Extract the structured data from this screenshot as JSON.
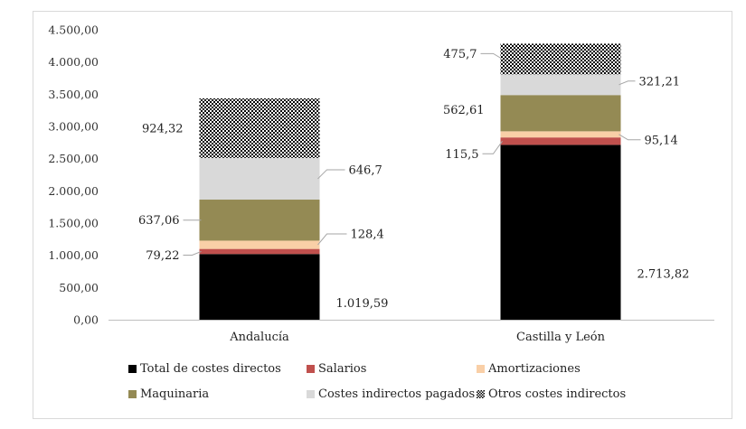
{
  "chart_data": {
    "type": "bar",
    "stacked": true,
    "categories": [
      "Andalucía",
      "Castilla y León"
    ],
    "ylim": [
      0,
      4500
    ],
    "yticks": [
      "0,00",
      "500,00",
      "1.000,00",
      "1.500,00",
      "2.000,00",
      "2.500,00",
      "3.000,00",
      "3.500,00",
      "4.000,00",
      "4.500,00"
    ],
    "series": [
      {
        "name": "Total de costes directos",
        "color": "#000000",
        "values": [
          1019.59,
          2713.82
        ],
        "labels": [
          "1.019,59",
          "2.713,82"
        ]
      },
      {
        "name": "Salarios",
        "color": "#c0504d",
        "values": [
          79.22,
          115.5
        ],
        "labels": [
          "79,22",
          "115,5"
        ]
      },
      {
        "name": "Amortizaciones",
        "color": "#f9cfa7",
        "values": [
          128.4,
          95.14
        ],
        "labels": [
          "128,4",
          "95,14"
        ]
      },
      {
        "name": "Maquinaria",
        "color": "#948a54",
        "values": [
          637.06,
          562.61
        ],
        "labels": [
          "637,06",
          "562,61"
        ]
      },
      {
        "name": "Costes indirectos pagados",
        "color": "#d9d9d9",
        "values": [
          646.7,
          321.21
        ],
        "labels": [
          "646,7",
          "321,21"
        ]
      },
      {
        "name": "Otros costes indirectos",
        "color": "pattern-checker",
        "values": [
          924.32,
          475.7
        ],
        "labels": [
          "924,32",
          "475,7"
        ]
      }
    ],
    "legend_position": "bottom",
    "grid": false
  }
}
